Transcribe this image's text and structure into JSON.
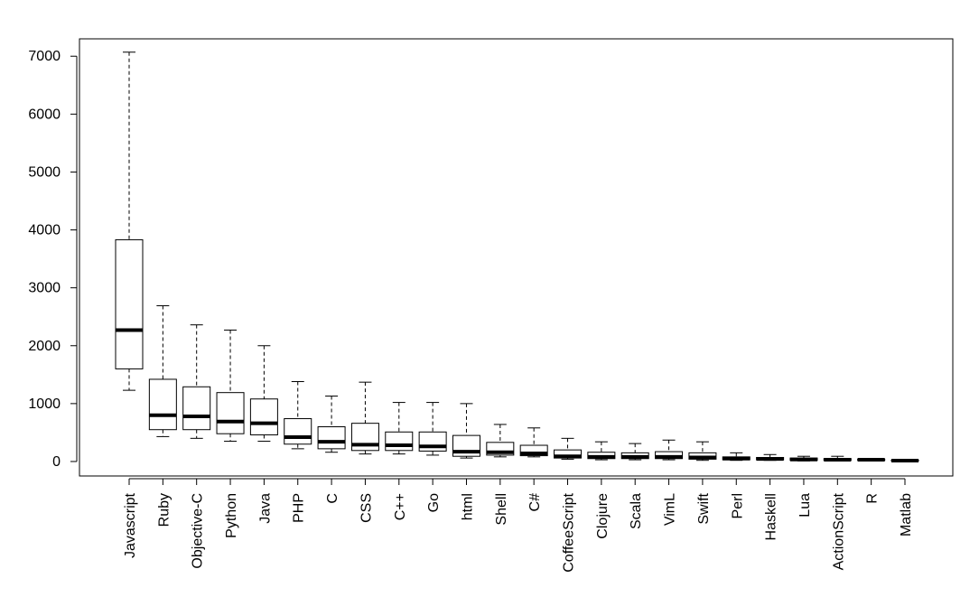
{
  "chart_data": {
    "type": "boxplot",
    "title": "",
    "xlabel": "",
    "ylabel": "",
    "ylim": [
      -250,
      7300
    ],
    "y_ticks": [
      0,
      1000,
      2000,
      3000,
      4000,
      5000,
      6000,
      7000
    ],
    "grid": false,
    "legend": "none",
    "categories": [
      "Javascript",
      "Ruby",
      "Objective-C",
      "Python",
      "Java",
      "PHP",
      "C",
      "CSS",
      "C++",
      "Go",
      "html",
      "Shell",
      "C#",
      "CoffeeScript",
      "Clojure",
      "Scala",
      "VimL",
      "Swift",
      "Perl",
      "Haskell",
      "Lua",
      "ActionScript",
      "R",
      "Matlab"
    ],
    "boxes": [
      {
        "min": 1230,
        "q1": 1600,
        "median": 2270,
        "q3": 3830,
        "max": 7070
      },
      {
        "min": 430,
        "q1": 550,
        "median": 800,
        "q3": 1420,
        "max": 2690
      },
      {
        "min": 400,
        "q1": 550,
        "median": 780,
        "q3": 1290,
        "max": 2360
      },
      {
        "min": 350,
        "q1": 480,
        "median": 690,
        "q3": 1190,
        "max": 2270
      },
      {
        "min": 350,
        "q1": 460,
        "median": 660,
        "q3": 1080,
        "max": 2000
      },
      {
        "min": 220,
        "q1": 300,
        "median": 420,
        "q3": 740,
        "max": 1380
      },
      {
        "min": 160,
        "q1": 220,
        "median": 340,
        "q3": 600,
        "max": 1130
      },
      {
        "min": 130,
        "q1": 190,
        "median": 290,
        "q3": 660,
        "max": 1370
      },
      {
        "min": 130,
        "q1": 190,
        "median": 280,
        "q3": 510,
        "max": 1020
      },
      {
        "min": 110,
        "q1": 180,
        "median": 260,
        "q3": 510,
        "max": 1020
      },
      {
        "min": 60,
        "q1": 90,
        "median": 170,
        "q3": 450,
        "max": 1000
      },
      {
        "min": 80,
        "q1": 110,
        "median": 160,
        "q3": 330,
        "max": 640
      },
      {
        "min": 80,
        "q1": 100,
        "median": 140,
        "q3": 280,
        "max": 580
      },
      {
        "min": 40,
        "q1": 60,
        "median": 90,
        "q3": 200,
        "max": 400
      },
      {
        "min": 30,
        "q1": 50,
        "median": 80,
        "q3": 160,
        "max": 340
      },
      {
        "min": 30,
        "q1": 50,
        "median": 80,
        "q3": 150,
        "max": 310
      },
      {
        "min": 30,
        "q1": 50,
        "median": 80,
        "q3": 170,
        "max": 370
      },
      {
        "min": 20,
        "q1": 40,
        "median": 70,
        "q3": 150,
        "max": 340
      },
      {
        "min": 20,
        "q1": 30,
        "median": 50,
        "q3": 80,
        "max": 150
      },
      {
        "min": 20,
        "q1": 30,
        "median": 45,
        "q3": 70,
        "max": 120
      },
      {
        "min": 10,
        "q1": 20,
        "median": 35,
        "q3": 60,
        "max": 90
      },
      {
        "min": 10,
        "q1": 20,
        "median": 30,
        "q3": 50,
        "max": 90
      },
      {
        "min": 10,
        "q1": 20,
        "median": 30,
        "q3": 40,
        "max": 50
      },
      {
        "min": 5,
        "q1": 10,
        "median": 15,
        "q3": 25,
        "max": 30
      }
    ]
  }
}
